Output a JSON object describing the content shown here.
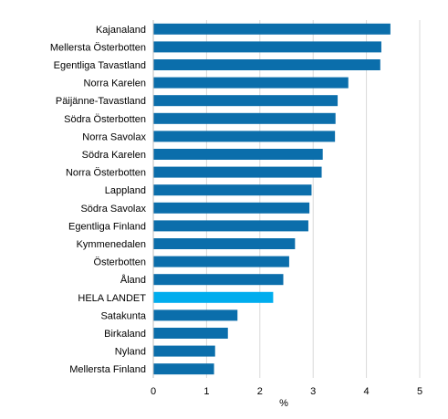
{
  "chart_data": {
    "type": "bar",
    "orientation": "horizontal",
    "title": "",
    "xlabel": "%",
    "ylabel": "",
    "xlim": [
      0,
      5
    ],
    "xticks": [
      "0",
      "1",
      "2",
      "3",
      "4",
      "5"
    ],
    "grid": true,
    "categories": [
      "Kajanaland",
      "Mellersta Österbotten",
      "Egentliga Tavastland",
      "Norra Karelen",
      "Päijänne-Tavastland",
      "Södra Österbotten",
      "Norra Savolax",
      "Södra Karelen",
      "Norra Österbotten",
      "Lappland",
      "Södra Savolax",
      "Egentliga Finland",
      "Kymmenedalen",
      "Österbotten",
      "Åland",
      "HELA LANDET",
      "Satakunta",
      "Birkaland",
      "Nyland",
      "Mellersta Finland"
    ],
    "values": [
      4.45,
      4.28,
      4.26,
      3.66,
      3.46,
      3.42,
      3.41,
      3.18,
      3.16,
      2.97,
      2.93,
      2.91,
      2.66,
      2.55,
      2.44,
      2.25,
      1.58,
      1.4,
      1.16,
      1.14
    ],
    "highlight": "HELA LANDET",
    "colors": {
      "bar": "#0B6EAB",
      "highlight": "#00ADEE",
      "grid": "#D9D9D9",
      "axis": "#BFBFBF"
    }
  }
}
